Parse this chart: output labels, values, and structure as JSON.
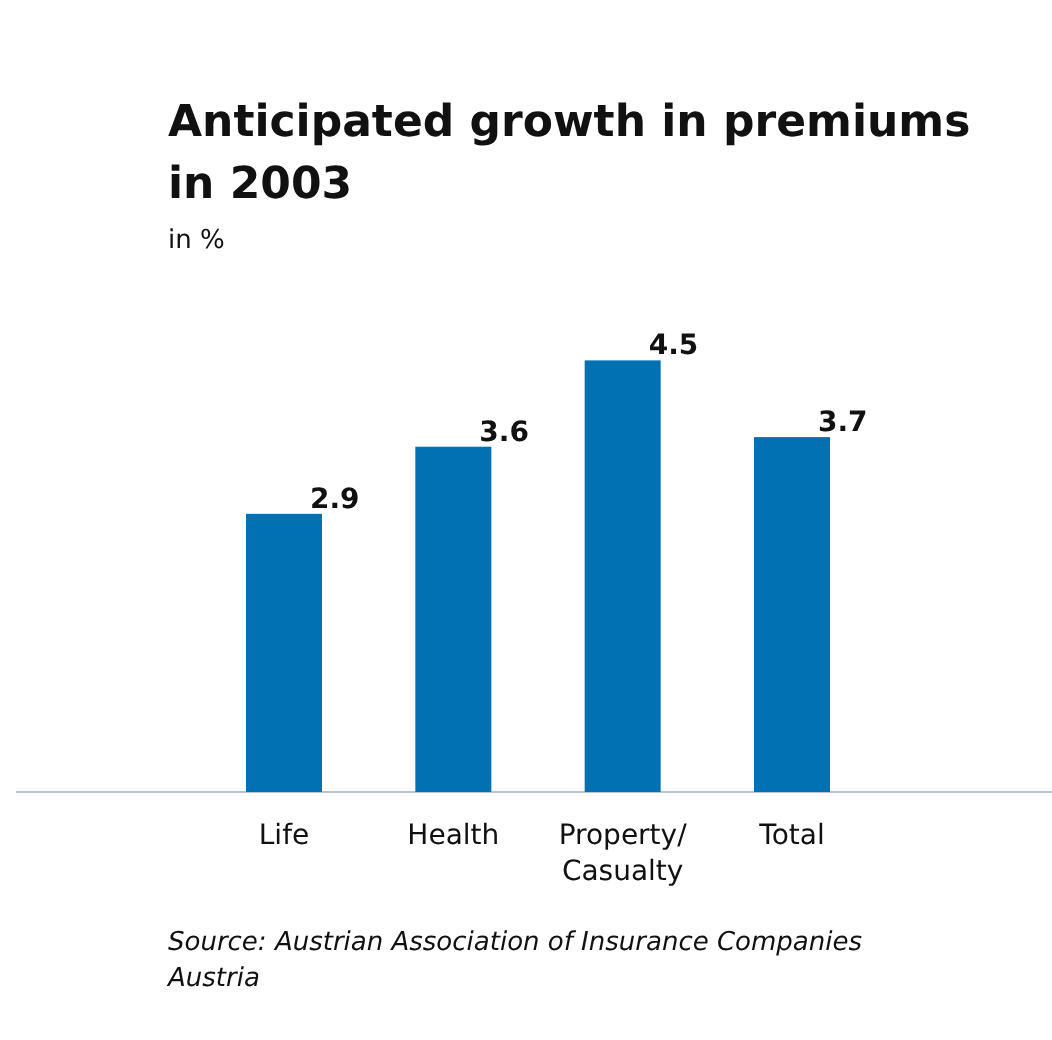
{
  "chart_data": {
    "type": "bar",
    "title": "Anticipated growth in premiums in 2003",
    "subtitle": "in %",
    "categories": [
      "Life",
      "Health",
      "Property/ Casualty",
      "Total"
    ],
    "values": [
      2.9,
      3.6,
      4.5,
      3.7
    ],
    "color": "#0271b3",
    "data_labels": true,
    "tick_labels": "x",
    "annotations": [
      "Source: Austrian Association of Insurance Companies Austria"
    ]
  }
}
